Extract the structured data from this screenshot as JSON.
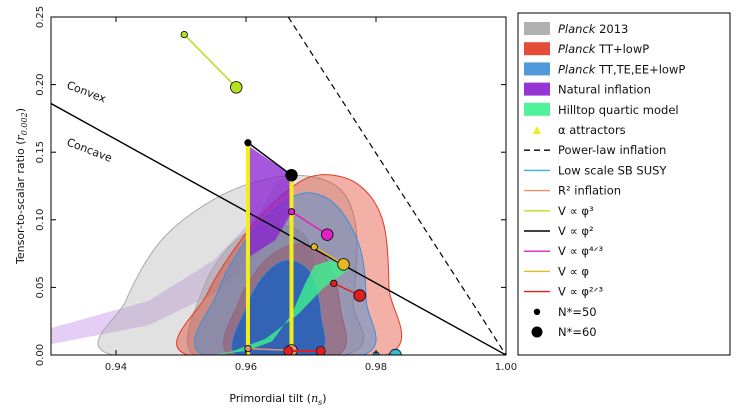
{
  "chart_data": {
    "type": "scatter",
    "xlabel": "Primordial tilt (n_s)",
    "xlabel_parts": {
      "text": "Primordial tilt (",
      "sym": "n",
      "sub": "s",
      "close": ")"
    },
    "ylabel": "Tensor-to-scalar ratio (r_0.002)",
    "ylabel_parts": {
      "text": "Tensor-to-scalar ratio (",
      "sym": "r",
      "sub": "0.002",
      "close": ")"
    },
    "xlim": [
      0.93,
      1.0
    ],
    "ylim": [
      0.0,
      0.25
    ],
    "xticks": [
      "0.94",
      "0.96",
      "0.98",
      "1.00"
    ],
    "xtick_values": [
      0.94,
      0.96,
      0.98,
      1.0
    ],
    "yticks": [
      "0.00",
      "0.05",
      "0.10",
      "0.15",
      "0.20",
      "0.25"
    ],
    "ytick_values": [
      0.0,
      0.05,
      0.1,
      0.15,
      0.2,
      0.25
    ],
    "annotations": [
      "Convex",
      "Concave"
    ],
    "legend_position": "right, outside plot",
    "legend": [
      {
        "kind": "patch",
        "color": "#a8a8a8",
        "italic": "Planck",
        "rest": " 2013"
      },
      {
        "kind": "patch",
        "color": "#e03a22",
        "italic": "Planck",
        "rest": " TT+lowP"
      },
      {
        "kind": "patch",
        "color": "#3d8fd8",
        "italic": "Planck",
        "rest": " TT,TE,EE+lowP"
      },
      {
        "kind": "patch",
        "color": "#8a1fd0",
        "italic": "",
        "rest": "Natural inflation"
      },
      {
        "kind": "patch",
        "color": "#3df28e",
        "italic": "",
        "rest": "Hilltop quartic model"
      },
      {
        "kind": "triangle",
        "color": "#f2ee1a",
        "italic": "",
        "rest": "α attractors"
      },
      {
        "kind": "dashed",
        "color": "#000000",
        "italic": "",
        "rest": "Power-law inflation"
      },
      {
        "kind": "line",
        "color": "#35b8d8",
        "italic": "",
        "rest": "Low scale SB SUSY"
      },
      {
        "kind": "line",
        "color": "#e8906a",
        "italic": "",
        "rest": "R² inflation"
      },
      {
        "kind": "line",
        "color": "#b6e020",
        "italic": "",
        "rest": "V ∝ φ³"
      },
      {
        "kind": "line",
        "color": "#000000",
        "italic": "",
        "rest": "V ∝ φ²"
      },
      {
        "kind": "line",
        "color": "#e020c0",
        "italic": "",
        "rest": "V ∝ φ⁴ᐟ³"
      },
      {
        "kind": "line",
        "color": "#e8b820",
        "italic": "",
        "rest": "V ∝ φ"
      },
      {
        "kind": "line",
        "color": "#e02020",
        "italic": "",
        "rest": "V ∝ φ²ᐟ³"
      },
      {
        "kind": "dot-small",
        "color": "#000000",
        "italic": "",
        "rest": "N*=50"
      },
      {
        "kind": "dot-large",
        "color": "#000000",
        "italic": "",
        "rest": "N*=60"
      }
    ],
    "contours": {
      "planck2013": {
        "color": "#a8a8a8",
        "outer": [
          [
            0.9395,
            0.0
          ],
          [
            0.9415,
            0.04
          ],
          [
            0.947,
            0.085
          ],
          [
            0.955,
            0.115
          ],
          [
            0.963,
            0.13
          ],
          [
            0.97,
            0.132
          ],
          [
            0.975,
            0.12
          ],
          [
            0.977,
            0.09
          ],
          [
            0.9765,
            0.04
          ],
          [
            0.975,
            0.0
          ]
        ],
        "inner": [
          [
            0.952,
            0.0
          ],
          [
            0.9535,
            0.05
          ],
          [
            0.9585,
            0.085
          ],
          [
            0.9645,
            0.096
          ],
          [
            0.9695,
            0.085
          ],
          [
            0.9705,
            0.04
          ],
          [
            0.969,
            0.0
          ]
        ]
      },
      "tt_lowp": {
        "color": "#e03a22",
        "outer": [
          [
            0.951,
            0.0
          ],
          [
            0.954,
            0.045
          ],
          [
            0.96,
            0.09
          ],
          [
            0.966,
            0.12
          ],
          [
            0.971,
            0.133
          ],
          [
            0.977,
            0.127
          ],
          [
            0.981,
            0.1
          ],
          [
            0.982,
            0.05
          ],
          [
            0.9815,
            0.0
          ]
        ],
        "inner": [
          [
            0.9575,
            0.0
          ],
          [
            0.959,
            0.04
          ],
          [
            0.963,
            0.07
          ],
          [
            0.968,
            0.082
          ],
          [
            0.9725,
            0.07
          ],
          [
            0.9745,
            0.035
          ],
          [
            0.974,
            0.0
          ]
        ]
      },
      "tt_te_ee_lowp": {
        "color": "#3d8fd8",
        "outer": [
          [
            0.9535,
            0.0
          ],
          [
            0.9555,
            0.045
          ],
          [
            0.96,
            0.085
          ],
          [
            0.965,
            0.11
          ],
          [
            0.9695,
            0.12
          ],
          [
            0.974,
            0.11
          ],
          [
            0.9775,
            0.08
          ],
          [
            0.9785,
            0.04
          ],
          [
            0.978,
            0.0
          ]
        ],
        "inner": [
          [
            0.9585,
            0.0
          ],
          [
            0.96,
            0.035
          ],
          [
            0.963,
            0.06
          ],
          [
            0.9665,
            0.07
          ],
          [
            0.97,
            0.06
          ],
          [
            0.9715,
            0.03
          ],
          [
            0.971,
            0.0
          ]
        ]
      }
    },
    "regions": {
      "natural_inflation": {
        "color": "#8a1fd0",
        "upper": [
          [
            0.9,
            0.005
          ],
          [
            0.93,
            0.02
          ],
          [
            0.945,
            0.04
          ],
          [
            0.955,
            0.07
          ],
          [
            0.962,
            0.105
          ],
          [
            0.965,
            0.13
          ]
        ],
        "lower": [
          [
            0.9,
            0.0
          ],
          [
            0.93,
            0.008
          ],
          [
            0.945,
            0.022
          ],
          [
            0.955,
            0.045
          ],
          [
            0.962,
            0.075
          ],
          [
            0.967,
            0.108
          ],
          [
            0.967,
            0.13
          ]
        ],
        "dark": [
          [
            0.9603,
            0.155
          ],
          [
            0.967,
            0.133
          ],
          [
            0.967,
            0.105
          ],
          [
            0.9645,
            0.085
          ],
          [
            0.9603,
            0.072
          ]
        ]
      },
      "hilltop_quartic": {
        "color": "#3df28e",
        "poly": [
          [
            0.955,
            0.0
          ],
          [
            0.96,
            0.003
          ],
          [
            0.964,
            0.01
          ],
          [
            0.967,
            0.03
          ],
          [
            0.969,
            0.052
          ],
          [
            0.9705,
            0.066
          ],
          [
            0.973,
            0.07
          ],
          [
            0.976,
            0.064
          ],
          [
            0.972,
            0.05
          ],
          [
            0.968,
            0.03
          ],
          [
            0.963,
            0.012
          ],
          [
            0.958,
            0.003
          ],
          [
            0.955,
            0.0
          ]
        ]
      }
    },
    "reference_lines": {
      "convex_concave_line": {
        "color": "#000000",
        "points": [
          [
            0.93,
            0.186
          ],
          [
            1.0,
            0.0
          ]
        ]
      },
      "power_law": {
        "color": "#000000",
        "dashed": true,
        "points": [
          [
            0.9665,
            0.25
          ],
          [
            1.0,
            0.0
          ]
        ]
      }
    },
    "attractor_lines": {
      "color": "#f2ee1a",
      "n50": {
        "x": 0.9603,
        "ymin": 0.0,
        "ymax": 0.157
      },
      "n60": {
        "x": 0.967,
        "ymin": 0.0,
        "ymax": 0.133
      }
    },
    "series": [
      {
        "name": "V ∝ φ³",
        "color": "#b6e020",
        "n50": [
          0.9505,
          0.237
        ],
        "n60": [
          0.9585,
          0.198
        ]
      },
      {
        "name": "V ∝ φ²",
        "color": "#000000",
        "n50": [
          0.9603,
          0.157
        ],
        "n60": [
          0.967,
          0.133
        ]
      },
      {
        "name": "V ∝ φ⁴ᐟ³",
        "color": "#e020c0",
        "n50": [
          0.967,
          0.106
        ],
        "n60": [
          0.9725,
          0.089
        ]
      },
      {
        "name": "V ∝ φ",
        "color": "#e8b820",
        "n50": [
          0.9705,
          0.08
        ],
        "n60": [
          0.975,
          0.067
        ]
      },
      {
        "name": "V ∝ φ²ᐟ³",
        "color": "#e02020",
        "n50": [
          0.9735,
          0.053
        ],
        "n60": [
          0.9775,
          0.044
        ]
      },
      {
        "name": "R² inflation",
        "color": "#e8906a",
        "n50": [
          0.9603,
          0.0047
        ],
        "n60": [
          0.967,
          0.0034
        ]
      },
      {
        "name": "Low scale SB SUSY",
        "color": "#35b8d8",
        "n50": [
          0.98,
          0.0
        ],
        "n60": [
          0.983,
          0.0
        ]
      }
    ],
    "red_markers": [
      [
        0.9665,
        0.003
      ],
      [
        0.9715,
        0.003
      ]
    ]
  }
}
